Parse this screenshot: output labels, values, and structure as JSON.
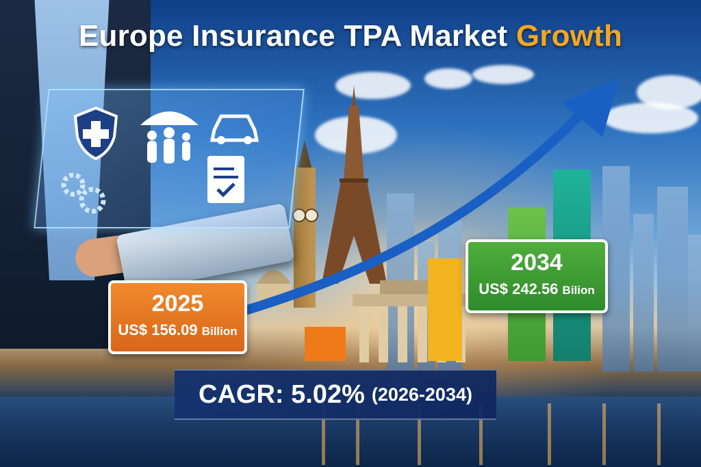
{
  "title": {
    "main": "Europe Insurance TPA Market",
    "accent": "Growth"
  },
  "start": {
    "year": "2025",
    "value": "US$ 156.09",
    "unit": "Billion"
  },
  "end": {
    "year": "2034",
    "value": "US$ 242.56",
    "unit": "Bilion"
  },
  "cagr": {
    "label": "CAGR: 5.02%",
    "range": "(2026-2034)"
  },
  "colors": {
    "accent": "#f5a623",
    "start_box": "#e8761c",
    "end_box": "#3d9a3a",
    "arrow": "#1a5fc4",
    "bar_orange": "#ef7a1a",
    "bar_yellow": "#f2b320",
    "bar_green": "#4fae3c",
    "bar_teal": "#17a08a"
  },
  "icons": [
    "shield-cross-icon",
    "family-umbrella-icon",
    "car-icon",
    "gears-icon",
    "document-check-icon"
  ]
}
